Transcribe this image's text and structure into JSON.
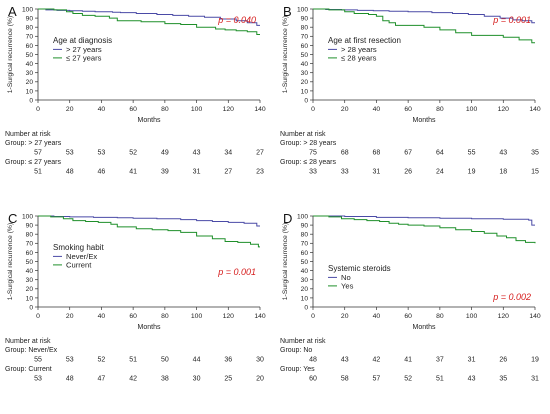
{
  "colors": {
    "blue": "#4a4aa6",
    "green": "#1f8f2a",
    "pvalue": "#d61f1f",
    "axis": "#333333",
    "text": "#222222"
  },
  "chart_data": [
    {
      "type": "line",
      "step": true,
      "panel_label": "A",
      "ylabel": "1-Surgical recurrence (%)",
      "xlabel": "Months",
      "xlim": [
        0,
        140
      ],
      "ylim": [
        0,
        100
      ],
      "x_ticks": [
        0,
        20,
        40,
        60,
        80,
        100,
        120,
        140
      ],
      "y_ticks": [
        0,
        10,
        20,
        30,
        40,
        50,
        60,
        70,
        80,
        90,
        100
      ],
      "p_value": "p = 0.040",
      "p_value_position": "top-right",
      "legend_title": "Age at diagnosis",
      "legend_position": "center-left",
      "series": [
        {
          "name": "> 27 years",
          "color": "blue",
          "x": [
            0,
            5,
            12,
            20,
            28,
            36,
            47,
            52,
            62,
            75,
            85,
            95,
            105,
            115,
            125,
            132,
            138,
            140
          ],
          "y": [
            100,
            99,
            98.5,
            98,
            97.5,
            97,
            96.5,
            96,
            95,
            94,
            93,
            92,
            91,
            89,
            87,
            85,
            82,
            82
          ]
        },
        {
          "name": "≤ 27 years",
          "color": "green",
          "x": [
            0,
            10,
            18,
            22,
            28,
            36,
            45,
            50,
            65,
            80,
            90,
            100,
            112,
            118,
            125,
            132,
            138,
            140
          ],
          "y": [
            100,
            99,
            97,
            95,
            93,
            92,
            90,
            87,
            86,
            84,
            83,
            80,
            78,
            77,
            76,
            75,
            72,
            72
          ]
        }
      ],
      "risk_table": {
        "title": "Number at risk",
        "groups": [
          {
            "label": "Group: > 27 years",
            "values": [
              "57",
              "53",
              "53",
              "52",
              "49",
              "43",
              "34",
              "27"
            ]
          },
          {
            "label": "Group: ≤ 27 years",
            "values": [
              "51",
              "48",
              "46",
              "41",
              "39",
              "31",
              "27",
              "23"
            ]
          }
        ]
      }
    },
    {
      "type": "line",
      "step": true,
      "panel_label": "B",
      "ylabel": "1-Surgical recurrence (%)",
      "xlabel": "Months",
      "xlim": [
        0,
        140
      ],
      "ylim": [
        0,
        100
      ],
      "x_ticks": [
        0,
        20,
        40,
        60,
        80,
        100,
        120,
        140
      ],
      "y_ticks": [
        0,
        10,
        20,
        30,
        40,
        50,
        60,
        70,
        80,
        90,
        100
      ],
      "p_value": "p = 0.001",
      "p_value_position": "top-right",
      "legend_title": "Age at first resection",
      "legend_position": "center-left",
      "series": [
        {
          "name": "> 28 years",
          "color": "blue",
          "x": [
            0,
            8,
            18,
            28,
            38,
            48,
            60,
            75,
            88,
            98,
            108,
            118,
            126,
            132,
            138,
            140
          ],
          "y": [
            100,
            99.5,
            99,
            98.5,
            98,
            97.5,
            97,
            96,
            95,
            94,
            92,
            90,
            88,
            87,
            85,
            85
          ]
        },
        {
          "name": "≤ 28 years",
          "color": "green",
          "x": [
            0,
            10,
            20,
            26,
            35,
            40,
            44,
            48,
            52,
            70,
            80,
            90,
            100,
            120,
            130,
            138,
            140
          ],
          "y": [
            100,
            99,
            97,
            95,
            94,
            92,
            87,
            85,
            82,
            80,
            77,
            74,
            71,
            69,
            66,
            63,
            63
          ]
        }
      ],
      "risk_table": {
        "title": "Number at risk",
        "groups": [
          {
            "label": "Group: > 28 years",
            "values": [
              "75",
              "68",
              "68",
              "67",
              "64",
              "55",
              "43",
              "35"
            ]
          },
          {
            "label": "Group: ≤ 28 years",
            "values": [
              "33",
              "33",
              "31",
              "26",
              "24",
              "19",
              "18",
              "15"
            ]
          }
        ]
      }
    },
    {
      "type": "line",
      "step": true,
      "panel_label": "C",
      "ylabel": "1-Surgical recurrence (%)",
      "xlabel": "Months",
      "xlim": [
        0,
        140
      ],
      "ylim": [
        0,
        100
      ],
      "x_ticks": [
        0,
        20,
        40,
        60,
        80,
        100,
        120,
        140
      ],
      "y_ticks": [
        0,
        10,
        20,
        30,
        40,
        50,
        60,
        70,
        80,
        90,
        100
      ],
      "p_value": "p = 0.001",
      "p_value_position": "center-right",
      "legend_title": "Smoking habit",
      "legend_position": "center-left",
      "series": [
        {
          "name": "Never/Ex",
          "color": "blue",
          "x": [
            0,
            10,
            20,
            35,
            50,
            60,
            75,
            90,
            100,
            110,
            120,
            130,
            138,
            140
          ],
          "y": [
            100,
            99.5,
            99,
            98.5,
            98,
            97.5,
            97,
            96,
            95,
            94,
            93,
            92,
            89,
            89
          ]
        },
        {
          "name": "Current",
          "color": "green",
          "x": [
            0,
            8,
            16,
            22,
            30,
            38,
            46,
            50,
            62,
            72,
            82,
            90,
            100,
            110,
            118,
            126,
            134,
            139,
            140
          ],
          "y": [
            100,
            99,
            97,
            95,
            94,
            93,
            91,
            88,
            86,
            85,
            84,
            82,
            78,
            75,
            72,
            71,
            69,
            66,
            66
          ]
        }
      ],
      "risk_table": {
        "title": "Number at risk",
        "groups": [
          {
            "label": "Group: Never/Ex",
            "values": [
              "55",
              "53",
              "52",
              "51",
              "50",
              "44",
              "36",
              "30"
            ]
          },
          {
            "label": "Group: Current",
            "values": [
              "53",
              "48",
              "47",
              "42",
              "38",
              "30",
              "25",
              "20"
            ]
          }
        ]
      }
    },
    {
      "type": "line",
      "step": true,
      "panel_label": "D",
      "ylabel": "1-Surgical recurrence (%)",
      "xlabel": "Months",
      "xlim": [
        0,
        140
      ],
      "ylim": [
        0,
        100
      ],
      "x_ticks": [
        0,
        20,
        40,
        60,
        80,
        100,
        120,
        140
      ],
      "y_ticks": [
        0,
        10,
        20,
        30,
        40,
        50,
        60,
        70,
        80,
        90,
        100
      ],
      "p_value": "p = 0.002",
      "p_value_position": "bottom-right",
      "legend_title": "Systemic steroids",
      "legend_position": "bottom-left",
      "series": [
        {
          "name": "No",
          "color": "blue",
          "x": [
            0,
            20,
            40,
            60,
            80,
            100,
            120,
            136,
            138,
            140
          ],
          "y": [
            100,
            99.5,
            98.5,
            98,
            97.5,
            97,
            96.5,
            95.5,
            90,
            90
          ]
        },
        {
          "name": "Yes",
          "color": "green",
          "x": [
            0,
            10,
            18,
            26,
            34,
            42,
            48,
            54,
            60,
            70,
            80,
            90,
            100,
            108,
            116,
            122,
            128,
            134,
            140
          ],
          "y": [
            100,
            99,
            97,
            96,
            95,
            94,
            92,
            91,
            90,
            89,
            87,
            85,
            83,
            81,
            78,
            76,
            73,
            71,
            70
          ]
        }
      ],
      "risk_table": {
        "title": "Number at risk",
        "groups": [
          {
            "label": "Group: No",
            "values": [
              "48",
              "43",
              "42",
              "41",
              "37",
              "31",
              "26",
              "19"
            ]
          },
          {
            "label": "Group: Yes",
            "values": [
              "60",
              "58",
              "57",
              "52",
              "51",
              "43",
              "35",
              "31"
            ]
          }
        ]
      }
    }
  ]
}
